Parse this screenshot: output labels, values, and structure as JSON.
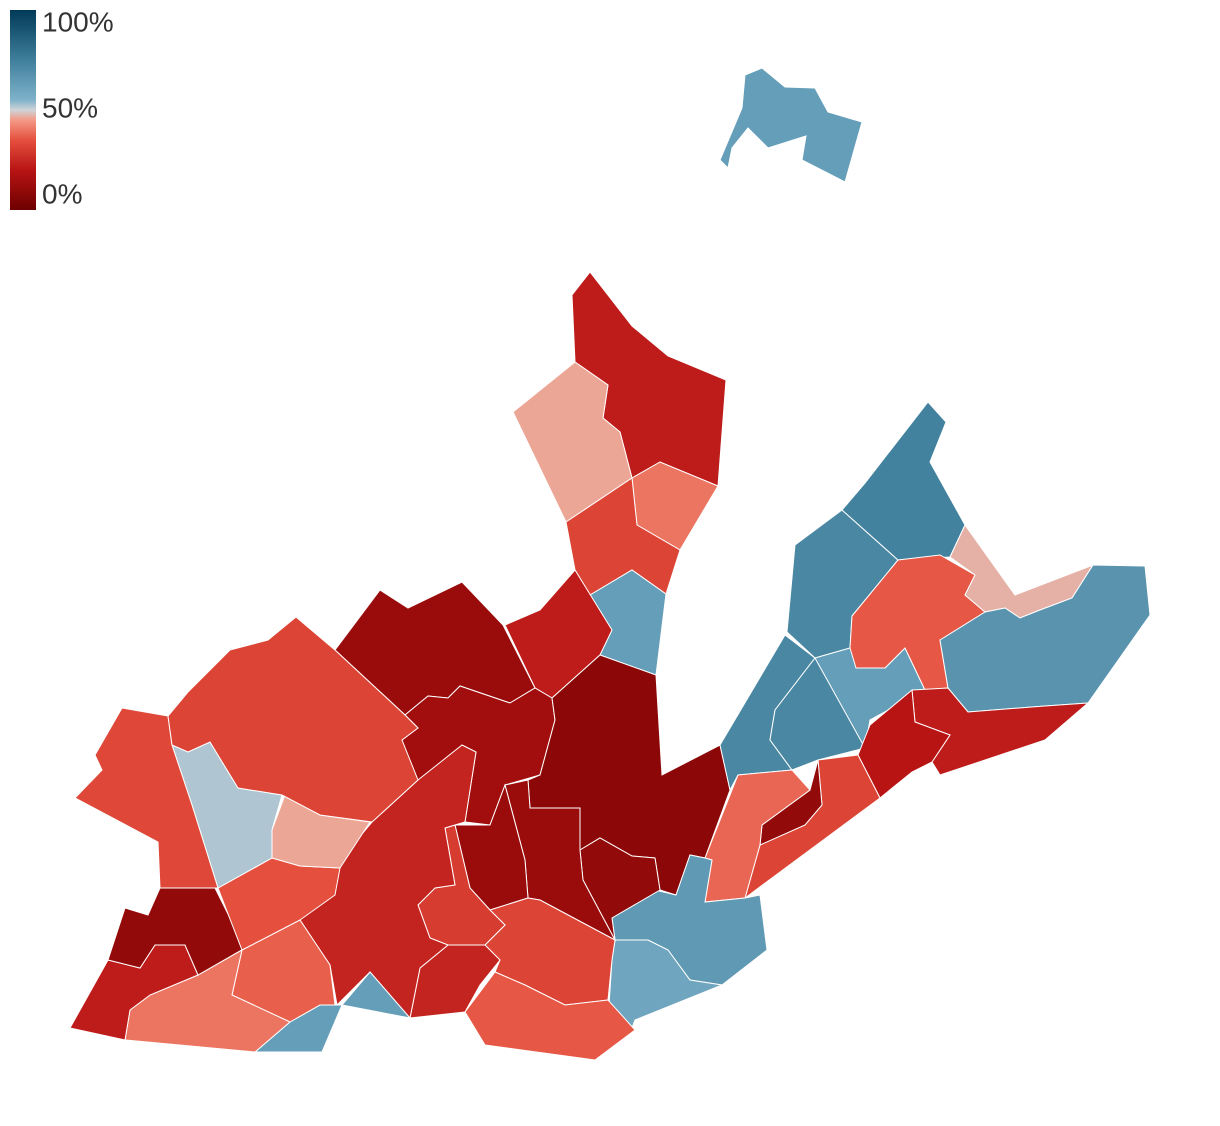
{
  "map": {
    "legend": {
      "min": 0,
      "max": 100,
      "ticks": [
        {
          "value": 100,
          "label": "100%"
        },
        {
          "value": 50,
          "label": "50%"
        },
        {
          "value": 0,
          "label": "0%"
        }
      ],
      "colorscale": [
        [
          0,
          "#6e0000"
        ],
        [
          20,
          "#b81414"
        ],
        [
          35,
          "#e5503e"
        ],
        [
          45,
          "#f39a86"
        ],
        [
          50,
          "#cfd4d8"
        ],
        [
          55,
          "#7fb2ca"
        ],
        [
          75,
          "#3f7f9c"
        ],
        [
          100,
          "#003a58"
        ]
      ]
    },
    "regions": [
      63,
      22,
      46,
      40,
      32,
      63,
      22,
      12,
      14,
      8,
      72,
      72,
      74,
      72,
      63,
      36,
      47,
      67,
      22,
      20,
      32,
      10,
      38,
      65,
      60,
      10,
      12,
      12,
      32,
      36,
      24,
      30,
      24,
      63,
      63,
      37,
      40,
      22,
      10,
      35,
      46,
      52,
      33,
      32
    ]
  }
}
